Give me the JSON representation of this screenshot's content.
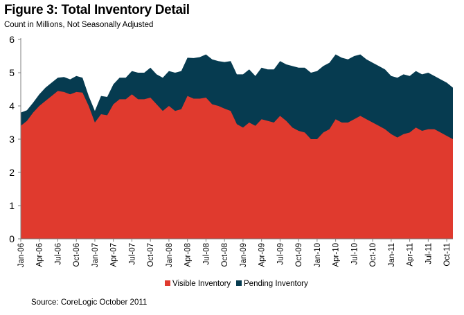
{
  "figure": {
    "title": "Figure 3: Total Inventory Detail",
    "subtitle": "Count in Millions, Not Seasonally Adjusted",
    "source": "Source: CoreLogic October 2011"
  },
  "chart_data": {
    "type": "area",
    "stacked": true,
    "ylim": [
      0,
      6
    ],
    "yticks": [
      0,
      1,
      2,
      3,
      4,
      5,
      6
    ],
    "grid": false,
    "legend_position": "bottom",
    "x_tick_labels": [
      "Jan-06",
      "Apr-06",
      "Jul-06",
      "Oct-06",
      "Jan-07",
      "Apr-07",
      "Jul-07",
      "Oct-07",
      "Jan-08",
      "Apr-08",
      "Jul-08",
      "Oct-08",
      "Jan-09",
      "Apr-09",
      "Jul-09",
      "Oct-09",
      "Jan-10",
      "Apr-10",
      "Jul-10",
      "Oct-10",
      "Jan-11",
      "Apr-11",
      "Jul-11",
      "Oct-11"
    ],
    "colors": {
      "visible": "#e03a2e",
      "pending": "#063b50",
      "axis": "#808080"
    },
    "series": [
      {
        "name": "Visible Inventory",
        "values": [
          3.4,
          3.55,
          3.8,
          4.0,
          4.15,
          4.3,
          4.45,
          4.42,
          4.35,
          4.42,
          4.4,
          4.0,
          3.5,
          3.75,
          3.72,
          4.05,
          4.2,
          4.2,
          4.35,
          4.2,
          4.2,
          4.25,
          4.05,
          3.85,
          4.0,
          3.85,
          3.9,
          4.3,
          4.22,
          4.22,
          4.25,
          4.05,
          4.0,
          3.92,
          3.85,
          3.45,
          3.35,
          3.5,
          3.4,
          3.6,
          3.55,
          3.5,
          3.7,
          3.55,
          3.35,
          3.25,
          3.2,
          3.0,
          3.0,
          3.2,
          3.3,
          3.6,
          3.5,
          3.5,
          3.6,
          3.7,
          3.6,
          3.5,
          3.4,
          3.3,
          3.15,
          3.05,
          3.15,
          3.2,
          3.35,
          3.25,
          3.3,
          3.3,
          3.2,
          3.1,
          3.0
        ]
      },
      {
        "name": "Pending Inventory",
        "values": [
          0.4,
          0.32,
          0.3,
          0.35,
          0.4,
          0.4,
          0.4,
          0.45,
          0.45,
          0.48,
          0.45,
          0.3,
          0.35,
          0.55,
          0.55,
          0.6,
          0.65,
          0.65,
          0.7,
          0.8,
          0.8,
          0.9,
          0.9,
          1.0,
          1.05,
          1.15,
          1.15,
          1.15,
          1.22,
          1.25,
          1.3,
          1.35,
          1.35,
          1.4,
          1.5,
          1.5,
          1.6,
          1.6,
          1.5,
          1.55,
          1.55,
          1.6,
          1.65,
          1.7,
          1.85,
          1.9,
          1.95,
          2.0,
          2.05,
          2.0,
          2.0,
          1.95,
          1.95,
          1.9,
          1.9,
          1.85,
          1.8,
          1.8,
          1.8,
          1.8,
          1.75,
          1.8,
          1.8,
          1.7,
          1.7,
          1.7,
          1.7,
          1.6,
          1.6,
          1.6,
          1.55
        ]
      }
    ]
  }
}
